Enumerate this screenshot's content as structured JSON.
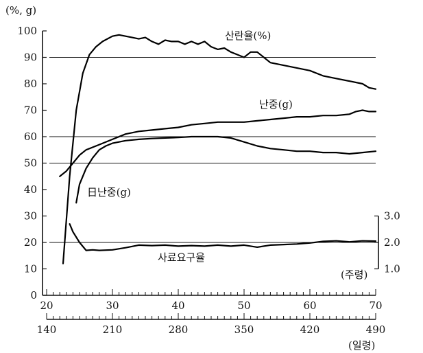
{
  "chart_data": {
    "type": "line",
    "title": "",
    "y_unit_label": "(%, g)",
    "left_axis": {
      "min": 0,
      "max": 100,
      "step": 10,
      "ticks": [
        "0",
        "10",
        "20",
        "30",
        "40",
        "50",
        "60",
        "70",
        "80",
        "90",
        "100"
      ]
    },
    "right_axis": {
      "min": 1.0,
      "max": 3.0,
      "ticks": [
        "1.0",
        "2.0",
        "3.0"
      ]
    },
    "x_weeks": {
      "label": "(주령)",
      "min": 20,
      "max": 70,
      "ticks": [
        "20",
        "30",
        "40",
        "50",
        "60",
        "70"
      ]
    },
    "x_days": {
      "label": "(일령)",
      "min": 140,
      "max": 490,
      "ticks": [
        "140",
        "210",
        "280",
        "350",
        "420",
        "490"
      ]
    },
    "reference_lines": [
      90,
      60,
      50,
      20
    ],
    "series": [
      {
        "name": "산란율(%)",
        "axis": "left",
        "x": [
          22.5,
          23.5,
          24.5,
          25.5,
          26.5,
          27.5,
          28.5,
          30,
          31,
          32,
          33,
          34,
          35,
          36,
          37,
          38,
          39,
          40,
          41,
          42,
          43,
          44,
          45,
          46,
          47,
          48,
          49,
          50,
          51,
          52,
          53,
          54,
          56,
          58,
          60,
          62,
          64,
          66,
          68,
          69,
          70
        ],
        "y": [
          12,
          45,
          70,
          84,
          91,
          94,
          96,
          98,
          98.5,
          98,
          97.5,
          97,
          97.5,
          96,
          95,
          96.5,
          96,
          96,
          95,
          96,
          95,
          96,
          94,
          93,
          93.5,
          92,
          91,
          90,
          92,
          92,
          90,
          88,
          87,
          86,
          85,
          83,
          82,
          81,
          80,
          78.5,
          78
        ]
      },
      {
        "name": "난중(g)",
        "axis": "left",
        "x": [
          22,
          23,
          24,
          25,
          26,
          28,
          30,
          32,
          34,
          36,
          38,
          40,
          42,
          44,
          46,
          48,
          50,
          52,
          54,
          56,
          58,
          60,
          62,
          64,
          66,
          67,
          68,
          69,
          70
        ],
        "y": [
          45,
          47,
          50,
          53,
          55,
          57,
          59,
          61,
          62,
          62.5,
          63,
          63.5,
          64.5,
          65,
          65.5,
          65.5,
          65.5,
          66,
          66.5,
          67,
          67.5,
          67.5,
          68,
          68,
          68.5,
          69.5,
          70,
          69.5,
          69.5
        ]
      },
      {
        "name": "日난중(g)",
        "axis": "left",
        "x": [
          24.5,
          25,
          26,
          27,
          28,
          29,
          30,
          32,
          34,
          36,
          38,
          40,
          42,
          44,
          46,
          48,
          50,
          52,
          54,
          56,
          58,
          60,
          62,
          64,
          66,
          68,
          70
        ],
        "y": [
          35,
          42,
          48,
          52,
          55,
          56.5,
          57.5,
          58.5,
          59,
          59.3,
          59.5,
          59.7,
          60,
          60,
          60,
          59.5,
          58,
          56.5,
          55.5,
          55,
          54.5,
          54.5,
          54,
          54,
          53.5,
          54,
          54.5
        ]
      },
      {
        "name": "사료요구율",
        "axis": "right",
        "x": [
          23.5,
          24,
          25,
          26,
          27,
          28,
          30,
          32,
          34,
          36,
          38,
          40,
          42,
          44,
          46,
          48,
          50,
          52,
          54,
          56,
          58,
          60,
          62,
          64,
          66,
          68,
          70
        ],
        "y": [
          2.7,
          2.4,
          2.0,
          1.7,
          1.72,
          1.7,
          1.72,
          1.8,
          1.9,
          1.88,
          1.9,
          1.86,
          1.88,
          1.86,
          1.9,
          1.86,
          1.9,
          1.82,
          1.9,
          1.92,
          1.94,
          1.98,
          2.04,
          2.06,
          2.02,
          2.06,
          2.05
        ]
      }
    ]
  }
}
